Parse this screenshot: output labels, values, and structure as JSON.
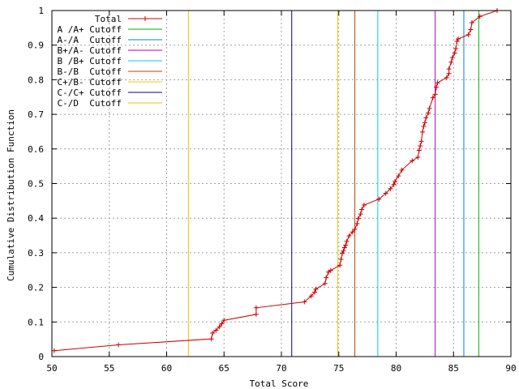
{
  "chart_data": {
    "type": "line",
    "title": "",
    "xlabel": "Total Score",
    "ylabel": "Cumulative Distribution Function",
    "xlim": [
      50,
      90
    ],
    "ylim": [
      0,
      1
    ],
    "x_ticks": [
      "50",
      "55",
      "60",
      "65",
      "70",
      "75",
      "80",
      "85",
      "90"
    ],
    "y_ticks": [
      "0",
      "0.1",
      "0.2",
      "0.3",
      "0.4",
      "0.5",
      "0.6",
      "0.7",
      "0.8",
      "0.9",
      "1"
    ],
    "grid": true,
    "legend_position": "top-left",
    "series": [
      {
        "name": "Total",
        "color": "#cc0000",
        "marker": "plus",
        "points": [
          [
            50.2,
            0.017
          ],
          [
            55.8,
            0.034
          ],
          [
            63.9,
            0.051
          ],
          [
            64.0,
            0.068
          ],
          [
            64.3,
            0.076
          ],
          [
            64.6,
            0.086
          ],
          [
            64.8,
            0.095
          ],
          [
            65.0,
            0.105
          ],
          [
            67.8,
            0.122
          ],
          [
            67.8,
            0.141
          ],
          [
            72.0,
            0.158
          ],
          [
            72.6,
            0.175
          ],
          [
            72.9,
            0.186
          ],
          [
            73.0,
            0.195
          ],
          [
            73.8,
            0.211
          ],
          [
            73.9,
            0.228
          ],
          [
            74.1,
            0.244
          ],
          [
            74.3,
            0.249
          ],
          [
            75.1,
            0.264
          ],
          [
            75.2,
            0.281
          ],
          [
            75.3,
            0.298
          ],
          [
            75.4,
            0.305
          ],
          [
            75.5,
            0.315
          ],
          [
            75.6,
            0.322
          ],
          [
            75.7,
            0.333
          ],
          [
            75.9,
            0.349
          ],
          [
            76.2,
            0.36
          ],
          [
            76.4,
            0.368
          ],
          [
            76.6,
            0.384
          ],
          [
            76.7,
            0.399
          ],
          [
            76.9,
            0.412
          ],
          [
            77.0,
            0.425
          ],
          [
            77.2,
            0.438
          ],
          [
            78.5,
            0.455
          ],
          [
            79.1,
            0.472
          ],
          [
            79.5,
            0.485
          ],
          [
            79.8,
            0.497
          ],
          [
            79.9,
            0.506
          ],
          [
            80.2,
            0.522
          ],
          [
            80.5,
            0.539
          ],
          [
            81.4,
            0.566
          ],
          [
            81.9,
            0.576
          ],
          [
            82.0,
            0.596
          ],
          [
            82.1,
            0.609
          ],
          [
            82.2,
            0.622
          ],
          [
            82.3,
            0.649
          ],
          [
            82.4,
            0.665
          ],
          [
            82.5,
            0.676
          ],
          [
            82.6,
            0.69
          ],
          [
            82.8,
            0.704
          ],
          [
            82.9,
            0.717
          ],
          [
            83.2,
            0.748
          ],
          [
            83.4,
            0.758
          ],
          [
            83.5,
            0.778
          ],
          [
            83.6,
            0.791
          ],
          [
            84.4,
            0.806
          ],
          [
            84.6,
            0.818
          ],
          [
            84.6,
            0.831
          ],
          [
            84.8,
            0.851
          ],
          [
            84.9,
            0.864
          ],
          [
            85.1,
            0.877
          ],
          [
            85.2,
            0.89
          ],
          [
            85.3,
            0.911
          ],
          [
            85.4,
            0.918
          ],
          [
            86.3,
            0.93
          ],
          [
            86.5,
            0.945
          ],
          [
            86.6,
            0.965
          ],
          [
            87.3,
            0.983
          ],
          [
            88.8,
            1.0
          ]
        ]
      }
    ],
    "cutoffs": [
      {
        "name": "A /A+ Cutoff",
        "x": 87.2,
        "color": "#00b000"
      },
      {
        "name": "A-/A  Cutoff",
        "x": 85.9,
        "color": "#0080c0"
      },
      {
        "name": "B+/A- Cutoff",
        "x": 83.4,
        "color": "#b000c0"
      },
      {
        "name": "B /B+ Cutoff",
        "x": 78.4,
        "color": "#00d0d0"
      },
      {
        "name": "B-/B  Cutoff",
        "x": 76.4,
        "color": "#c04000"
      },
      {
        "name": "C+/B- Cutoff",
        "x": 74.9,
        "color": "#e6d000"
      },
      {
        "name": "C-/C+ Cutoff",
        "x": 70.9,
        "color": "#000090"
      },
      {
        "name": "C-/D  Cutoff",
        "x": 61.9,
        "color": "#f0c000"
      }
    ]
  }
}
